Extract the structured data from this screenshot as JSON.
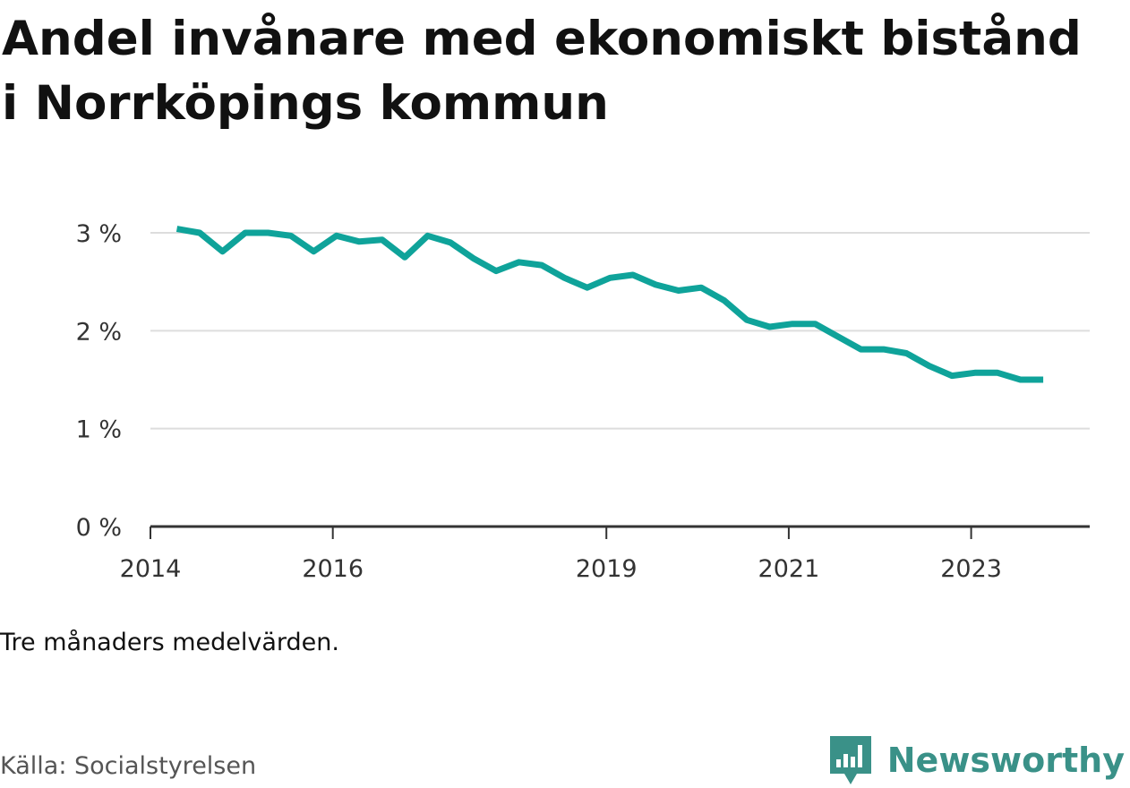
{
  "title": "Andel invånare med ekonomiskt bistånd i Norrköpings kommun",
  "note": "Tre månaders medelvärden.",
  "source": "Källa: Socialstyrelsen",
  "brand": {
    "name": "Newsworthy",
    "icon": "newsworthy-logo-icon",
    "color": "#3a9188"
  },
  "colors": {
    "line": "#0fa39a",
    "grid": "#dddddd",
    "axis": "#333333"
  },
  "chart_data": {
    "type": "line",
    "title": "Andel invånare med ekonomiskt bistånd i Norrköpings kommun",
    "xlabel": "",
    "ylabel": "",
    "ylim": [
      0,
      3
    ],
    "xlim": [
      2014.0,
      2024.3
    ],
    "yticks": [
      0,
      1,
      2,
      3
    ],
    "ytick_labels": [
      "0 %",
      "1 %",
      "2 %",
      "3 %"
    ],
    "xticks": [
      2014,
      2016,
      2019,
      2021,
      2023
    ],
    "xtick_labels": [
      "2014",
      "2016",
      "2019",
      "2021",
      "2023"
    ],
    "grid": true,
    "series": [
      {
        "values_percent": [
          3.04,
          3.0,
          2.81,
          3.0,
          3.0,
          2.97,
          2.81,
          2.97,
          2.91,
          2.93,
          2.75,
          2.97,
          2.9,
          2.74,
          2.61,
          2.7,
          2.67,
          2.54,
          2.44,
          2.54,
          2.57,
          2.47,
          2.41,
          2.44,
          2.31,
          2.11,
          2.04,
          2.07,
          2.07,
          1.94,
          1.81,
          1.81,
          1.77,
          1.64,
          1.54,
          1.57,
          1.57,
          1.5,
          1.5
        ],
        "x_start": 2014.29,
        "x_step": 0.25
      }
    ]
  }
}
